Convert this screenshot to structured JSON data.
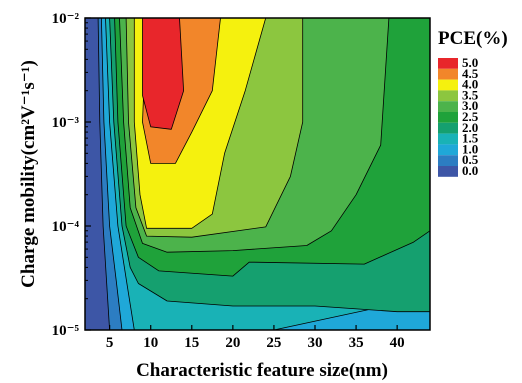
{
  "chart_data": {
    "type": "contour",
    "xlabel": "Characteristic feature size(nm)",
    "ylabel": "Charge mobility(cm²V⁻¹s⁻¹)",
    "xlim": [
      2,
      44
    ],
    "ylim": [
      1e-05,
      0.01
    ],
    "y_scale": "log",
    "x_ticks": [
      5,
      10,
      15,
      20,
      25,
      30,
      35,
      40
    ],
    "y_ticks": [
      {
        "value": 1e-05,
        "label": "10⁻⁵"
      },
      {
        "value": 0.0001,
        "label": "10⁻⁴"
      },
      {
        "value": 0.001,
        "label": "10⁻³"
      },
      {
        "value": 0.01,
        "label": "10⁻²"
      }
    ],
    "colorbar": {
      "title": "PCE(%)",
      "placement": "right",
      "levels": [
        {
          "value": 5.0,
          "label": "5.0",
          "color": "#e8262b"
        },
        {
          "value": 4.5,
          "label": "4.5",
          "color": "#f2862a"
        },
        {
          "value": 4.0,
          "label": "4.0",
          "color": "#f5f10e"
        },
        {
          "value": 3.5,
          "label": "3.5",
          "color": "#8cc63f"
        },
        {
          "value": 3.0,
          "label": "3.0",
          "color": "#4cb34b"
        },
        {
          "value": 2.5,
          "label": "2.5",
          "color": "#1fa23a"
        },
        {
          "value": 2.0,
          "label": "2.0",
          "color": "#15a06f"
        },
        {
          "value": 1.5,
          "label": "1.5",
          "color": "#19b2b6"
        },
        {
          "value": 1.0,
          "label": "1.0",
          "color": "#1fa8d8"
        },
        {
          "value": 0.5,
          "label": "0.5",
          "color": "#2c7dc2"
        },
        {
          "value": 0.0,
          "label": "0.0",
          "color": "#3d56a6"
        }
      ]
    },
    "regions": [
      {
        "level": 0.0,
        "color": "#3d56a6",
        "points": [
          [
            2,
            1e-05
          ],
          [
            44,
            1e-05
          ],
          [
            44,
            0.01
          ],
          [
            2,
            0.01
          ]
        ]
      },
      {
        "level": 0.5,
        "color": "#2c7dc2",
        "points": [
          [
            5,
            1e-05
          ],
          [
            44,
            1e-05
          ],
          [
            44,
            0.01
          ],
          [
            3.6,
            0.01
          ],
          [
            3.8,
            0.001
          ],
          [
            4.2,
            0.0001
          ]
        ]
      },
      {
        "level": 1.0,
        "color": "#1fa8d8",
        "points": [
          [
            6.5,
            1e-05
          ],
          [
            44,
            1e-05
          ],
          [
            44,
            0.01
          ],
          [
            4.0,
            0.01
          ],
          [
            4.3,
            0.001
          ],
          [
            5.0,
            0.0001
          ],
          [
            5.8,
            3e-05
          ]
        ]
      },
      {
        "level": 1.5,
        "color": "#19b2b6",
        "points": [
          [
            8,
            1e-05
          ],
          [
            15,
            1e-05
          ],
          [
            25,
            1e-05
          ],
          [
            40,
            1.8e-05
          ],
          [
            44,
            3e-05
          ],
          [
            44,
            0.01
          ],
          [
            4.5,
            0.01
          ],
          [
            5.0,
            0.001
          ],
          [
            6.0,
            0.0001
          ],
          [
            7.2,
            2.5e-05
          ]
        ]
      },
      {
        "level": 2.0,
        "color": "#15a06f",
        "points": [
          [
            8.5,
            2.8e-05
          ],
          [
            12,
            1.9e-05
          ],
          [
            20,
            1.7e-05
          ],
          [
            30,
            1.7e-05
          ],
          [
            40,
            1.5e-05
          ],
          [
            44,
            1.5e-05
          ],
          [
            44,
            0.01
          ],
          [
            5.0,
            0.01
          ],
          [
            5.5,
            0.001
          ],
          [
            6.5,
            0.0001
          ],
          [
            7.5,
            4e-05
          ]
        ]
      },
      {
        "level": 2.5,
        "color": "#1fa23a",
        "points": [
          [
            8.5,
            5e-05
          ],
          [
            11,
            3.7e-05
          ],
          [
            20,
            3.3e-05
          ],
          [
            22,
            4.5e-05
          ],
          [
            36,
            4.3e-05
          ],
          [
            42,
            7e-05
          ],
          [
            44,
            9e-05
          ],
          [
            44,
            0.01
          ],
          [
            5.6,
            0.01
          ],
          [
            6,
            0.001
          ],
          [
            7,
            0.0001
          ]
        ]
      },
      {
        "level": 3.0,
        "color": "#4cb34b",
        "points": [
          [
            9,
            6.8e-05
          ],
          [
            12,
            5.6e-05
          ],
          [
            20,
            5.8e-05
          ],
          [
            29,
            6.5e-05
          ],
          [
            32,
            9e-05
          ],
          [
            35,
            0.0002
          ],
          [
            38,
            0.0006
          ],
          [
            39,
            0.01
          ],
          [
            6.2,
            0.01
          ],
          [
            6.7,
            0.001
          ],
          [
            7.5,
            0.00015
          ]
        ]
      },
      {
        "level": 3.5,
        "color": "#8cc63f",
        "points": [
          [
            9.5,
            8e-05
          ],
          [
            15,
            7.8e-05
          ],
          [
            24,
            9.8e-05
          ],
          [
            27,
            0.0003
          ],
          [
            28.5,
            0.001
          ],
          [
            28.5,
            0.01
          ],
          [
            7,
            0.01
          ],
          [
            7.3,
            0.001
          ],
          [
            8.2,
            0.00015
          ]
        ]
      },
      {
        "level": 4.0,
        "color": "#f5f10e",
        "points": [
          [
            9.5,
            9.5e-05
          ],
          [
            15,
            9.5e-05
          ],
          [
            17.5,
            0.00013
          ],
          [
            19,
            0.0005
          ],
          [
            21.5,
            0.002
          ],
          [
            24,
            0.01
          ],
          [
            8,
            0.01
          ],
          [
            8,
            0.001
          ],
          [
            8.7,
            0.0002
          ]
        ]
      },
      {
        "level": 4.5,
        "color": "#f2862a",
        "points": [
          [
            10,
            0.0004
          ],
          [
            13,
            0.0004
          ],
          [
            15,
            0.0008
          ],
          [
            17.5,
            0.002
          ],
          [
            18.5,
            0.01
          ],
          [
            9.5,
            0.01
          ],
          [
            9,
            0.001
          ]
        ]
      },
      {
        "level": 5.0,
        "color": "#e8262b",
        "points": [
          [
            10,
            0.0009
          ],
          [
            12.5,
            0.00085
          ],
          [
            14,
            0.002
          ],
          [
            13.5,
            0.01
          ],
          [
            9,
            0.01
          ],
          [
            9,
            0.0018
          ]
        ]
      }
    ]
  }
}
